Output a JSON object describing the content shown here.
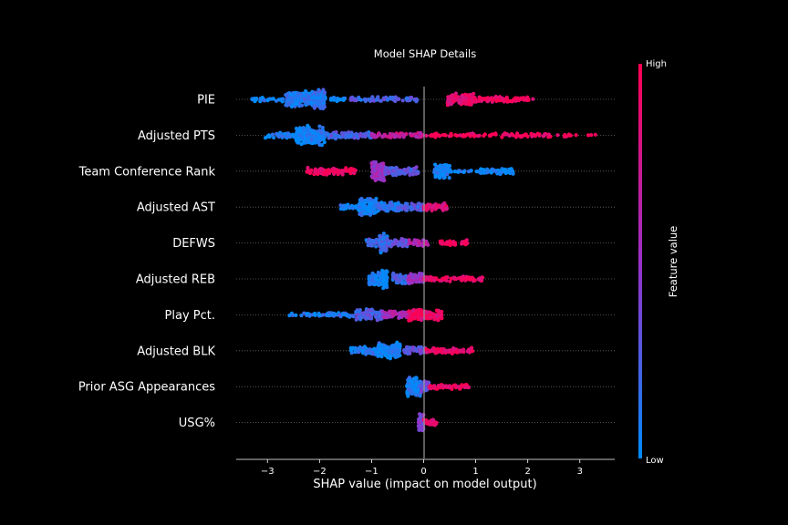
{
  "chart_data": {
    "type": "scatter",
    "title": "Model SHAP Details",
    "xlabel": "SHAP value (impact on model output)",
    "xlim": [
      -3.6,
      3.67
    ],
    "xticks": [
      -3,
      -2,
      -1,
      0,
      1,
      2,
      3
    ],
    "xtick_labels": [
      "−3",
      "−2",
      "−1",
      "0",
      "1",
      "2",
      "3"
    ],
    "colorbar": {
      "label": "Feature value",
      "high_label": "High",
      "low_label": "Low",
      "high_color": "#ff0052",
      "low_color": "#008bfb"
    },
    "features": [
      {
        "name": "PIE",
        "clusters": [
          [
            -3.3,
            -2.7,
            0.06,
            30
          ],
          [
            -2.65,
            -2.05,
            0.08,
            200
          ],
          [
            -2.1,
            -1.9,
            0.12,
            150
          ],
          [
            -2.1,
            -1.5,
            0.0,
            25
          ],
          [
            -1.4,
            -0.1,
            0.22,
            70
          ],
          [
            0.45,
            1.0,
            0.88,
            120
          ],
          [
            1.0,
            2.1,
            0.95,
            80
          ]
        ]
      },
      {
        "name": "Adjusted PTS",
        "clusters": [
          [
            -3.05,
            -2.45,
            0.06,
            40
          ],
          [
            -2.45,
            -1.9,
            0.05,
            220
          ],
          [
            -1.9,
            -1.0,
            0.25,
            90
          ],
          [
            -1.0,
            0.0,
            0.7,
            60
          ],
          [
            0.0,
            2.5,
            0.95,
            90
          ],
          [
            2.5,
            3.35,
            1.0,
            12
          ]
        ]
      },
      {
        "name": "Team Conference Rank",
        "clusters": [
          [
            -2.25,
            -1.3,
            0.95,
            100
          ],
          [
            -1.0,
            -0.75,
            0.55,
            140
          ],
          [
            -0.75,
            -0.1,
            0.3,
            90
          ],
          [
            0.2,
            0.5,
            0.05,
            90
          ],
          [
            0.5,
            1.05,
            0.03,
            15
          ],
          [
            1.05,
            1.75,
            0.0,
            60
          ]
        ]
      },
      {
        "name": "Adjusted AST",
        "clusters": [
          [
            -1.6,
            -1.25,
            0.06,
            25
          ],
          [
            -1.25,
            -0.9,
            0.04,
            130
          ],
          [
            -0.9,
            -0.45,
            0.12,
            80
          ],
          [
            -0.45,
            0.0,
            0.25,
            60
          ],
          [
            0.0,
            0.45,
            0.85,
            60
          ]
        ]
      },
      {
        "name": "DEFWS",
        "clusters": [
          [
            -1.1,
            -0.85,
            0.2,
            30
          ],
          [
            -0.85,
            -0.7,
            0.15,
            90
          ],
          [
            -0.7,
            -0.3,
            0.3,
            60
          ],
          [
            -0.3,
            0.1,
            0.6,
            40
          ],
          [
            0.3,
            0.85,
            0.95,
            40
          ]
        ]
      },
      {
        "name": "Adjusted REB",
        "clusters": [
          [
            -1.05,
            -0.75,
            0.08,
            80
          ],
          [
            -0.8,
            -0.7,
            0.0,
            60
          ],
          [
            -0.6,
            -0.3,
            0.2,
            60
          ],
          [
            -0.3,
            0.0,
            0.5,
            60
          ],
          [
            0.0,
            1.15,
            0.92,
            70
          ]
        ]
      },
      {
        "name": "Play Pct.",
        "clusters": [
          [
            -2.6,
            -1.9,
            0.05,
            20
          ],
          [
            -1.9,
            -1.3,
            0.12,
            40
          ],
          [
            -1.3,
            -0.8,
            0.25,
            100
          ],
          [
            -0.8,
            -0.3,
            0.55,
            60
          ],
          [
            -0.3,
            0.35,
            0.92,
            140
          ]
        ]
      },
      {
        "name": "Adjusted BLK",
        "clusters": [
          [
            -1.4,
            -0.9,
            0.08,
            70
          ],
          [
            -0.9,
            -0.5,
            0.05,
            120
          ],
          [
            -0.55,
            -0.45,
            0.0,
            40
          ],
          [
            -0.4,
            0.05,
            0.3,
            60
          ],
          [
            0.0,
            0.95,
            0.9,
            70
          ]
        ]
      },
      {
        "name": "Prior ASG Appearances",
        "clusters": [
          [
            -0.32,
            -0.05,
            0.05,
            220
          ],
          [
            -0.05,
            0.1,
            0.3,
            30
          ],
          [
            0.1,
            0.9,
            0.95,
            50
          ]
        ]
      },
      {
        "name": "USG%",
        "clusters": [
          [
            -0.1,
            0.0,
            0.45,
            50
          ],
          [
            0.0,
            0.25,
            0.85,
            30
          ]
        ]
      }
    ]
  }
}
